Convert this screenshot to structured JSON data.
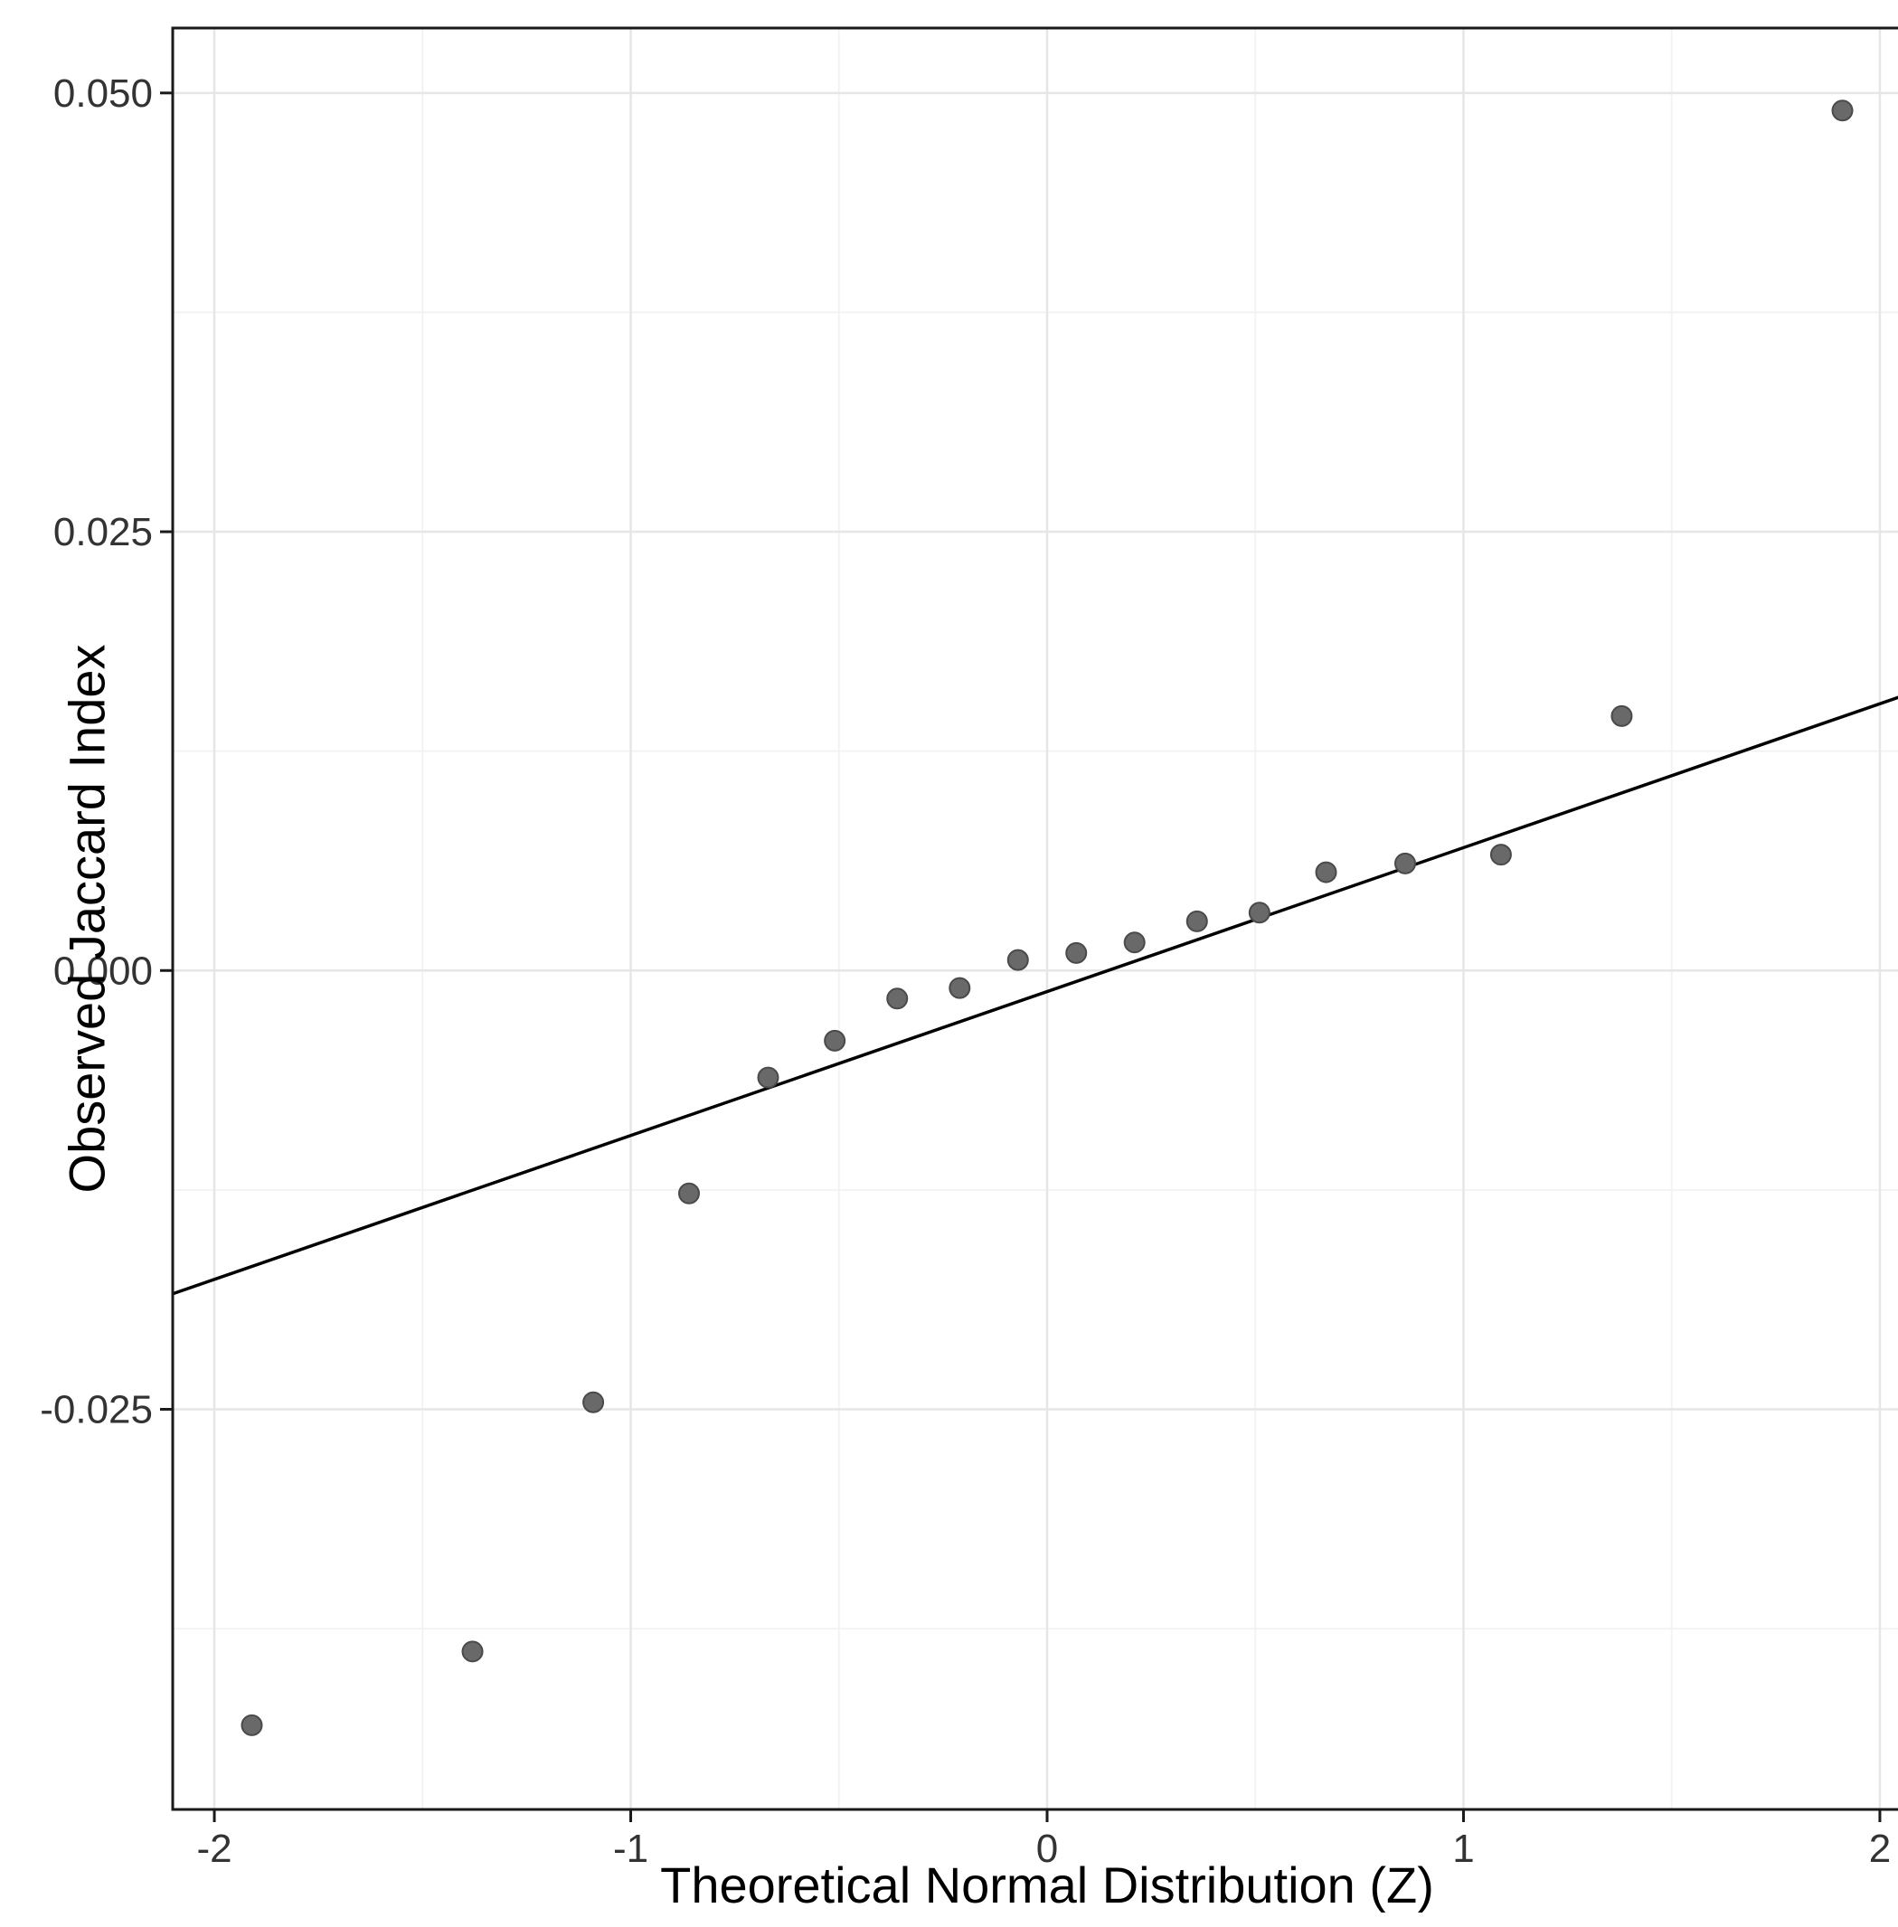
{
  "chart_data": {
    "type": "scatter",
    "title": "",
    "xlabel": "Theoretical Normal Distribution (Z)",
    "ylabel": "Observed Jaccard Index",
    "x_domain": [
      -2.1,
      2.1
    ],
    "y_domain": [
      -0.0478,
      0.0537
    ],
    "grid": "on",
    "legend": "none",
    "x_ticks": [
      {
        "v": -2,
        "label": "-2"
      },
      {
        "v": -1,
        "label": "-1"
      },
      {
        "v": 0,
        "label": "0"
      },
      {
        "v": 1,
        "label": "1"
      },
      {
        "v": 2,
        "label": "2"
      }
    ],
    "y_ticks": [
      {
        "v": -0.025,
        "label": "-0.025"
      },
      {
        "v": 0,
        "label": "0.000"
      },
      {
        "v": 0.025,
        "label": "0.025"
      },
      {
        "v": 0.05,
        "label": "0.050"
      }
    ],
    "x_minor": [
      -1.5,
      -0.5,
      0.5,
      1.5
    ],
    "y_minor": [
      -0.0375,
      -0.0125,
      0.0125,
      0.0375
    ],
    "points": [
      {
        "z": -1.91,
        "y": -0.043
      },
      {
        "z": -1.38,
        "y": -0.0388
      },
      {
        "z": -1.09,
        "y": -0.0246
      },
      {
        "z": -0.86,
        "y": -0.0127
      },
      {
        "z": -0.67,
        "y": -0.0061
      },
      {
        "z": -0.51,
        "y": -0.004
      },
      {
        "z": -0.36,
        "y": -0.0016
      },
      {
        "z": -0.21,
        "y": -0.001
      },
      {
        "z": -0.07,
        "y": 0.0006
      },
      {
        "z": 0.07,
        "y": 0.001
      },
      {
        "z": 0.21,
        "y": 0.0016
      },
      {
        "z": 0.36,
        "y": 0.0028
      },
      {
        "z": 0.51,
        "y": 0.0033
      },
      {
        "z": 0.67,
        "y": 0.0056
      },
      {
        "z": 0.86,
        "y": 0.0061
      },
      {
        "z": 1.09,
        "y": 0.0066
      },
      {
        "z": 1.38,
        "y": 0.0145
      },
      {
        "z": 1.91,
        "y": 0.049
      }
    ],
    "qq_line": {
      "slope": 0.0082,
      "intercept": -0.0012
    },
    "style": {
      "panel_bg": "#ffffff",
      "grid_major": "#e6e6e6",
      "grid_minor": "#f2f2f2",
      "grid_major_width": 2.5,
      "grid_minor_width": 1.8,
      "border_color": "#1a1a1a",
      "border_width": 3,
      "line_color": "#000000",
      "line_width": 3.5,
      "point_fill": "#696969",
      "point_stroke": "#4a4a4a",
      "point_radius": 11,
      "tick_color": "#1a1a1a",
      "tick_label_color": "#333333",
      "tick_font_size": 44
    }
  }
}
